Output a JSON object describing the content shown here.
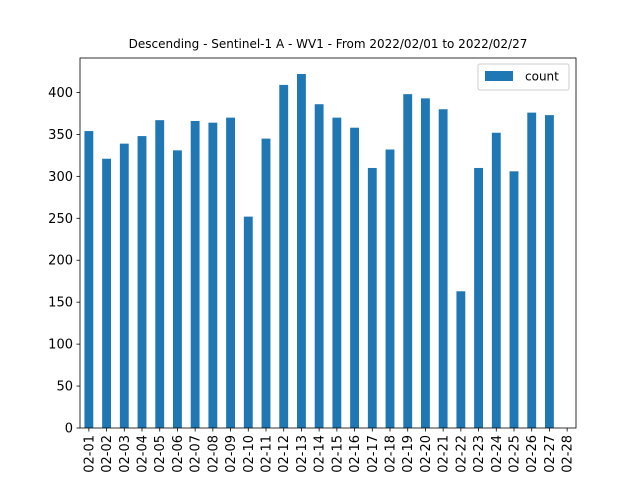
{
  "chart_data": {
    "type": "bar",
    "title": "Descending - Sentinel-1 A - WV1 - From 2022/02/01 to 2022/02/27",
    "xlabel": "",
    "ylabel": "",
    "categories": [
      "02-01",
      "02-02",
      "02-03",
      "02-04",
      "02-05",
      "02-06",
      "02-07",
      "02-08",
      "02-09",
      "02-10",
      "02-11",
      "02-12",
      "02-13",
      "02-14",
      "02-15",
      "02-16",
      "02-17",
      "02-18",
      "02-19",
      "02-20",
      "02-21",
      "02-22",
      "02-23",
      "02-24",
      "02-25",
      "02-26",
      "02-27",
      "02-28"
    ],
    "series": [
      {
        "name": "count",
        "color": "#1f77b4",
        "values": [
          354,
          321,
          339,
          348,
          367,
          331,
          366,
          364,
          370,
          252,
          345,
          409,
          422,
          386,
          370,
          358,
          310,
          332,
          398,
          393,
          380,
          163,
          310,
          352,
          306,
          376,
          373,
          0
        ]
      }
    ],
    "ylim": [
      0,
      441.1
    ],
    "yticks": [
      0,
      50,
      100,
      150,
      200,
      250,
      300,
      350,
      400
    ],
    "grid": false,
    "legend_position": "upper right"
  }
}
